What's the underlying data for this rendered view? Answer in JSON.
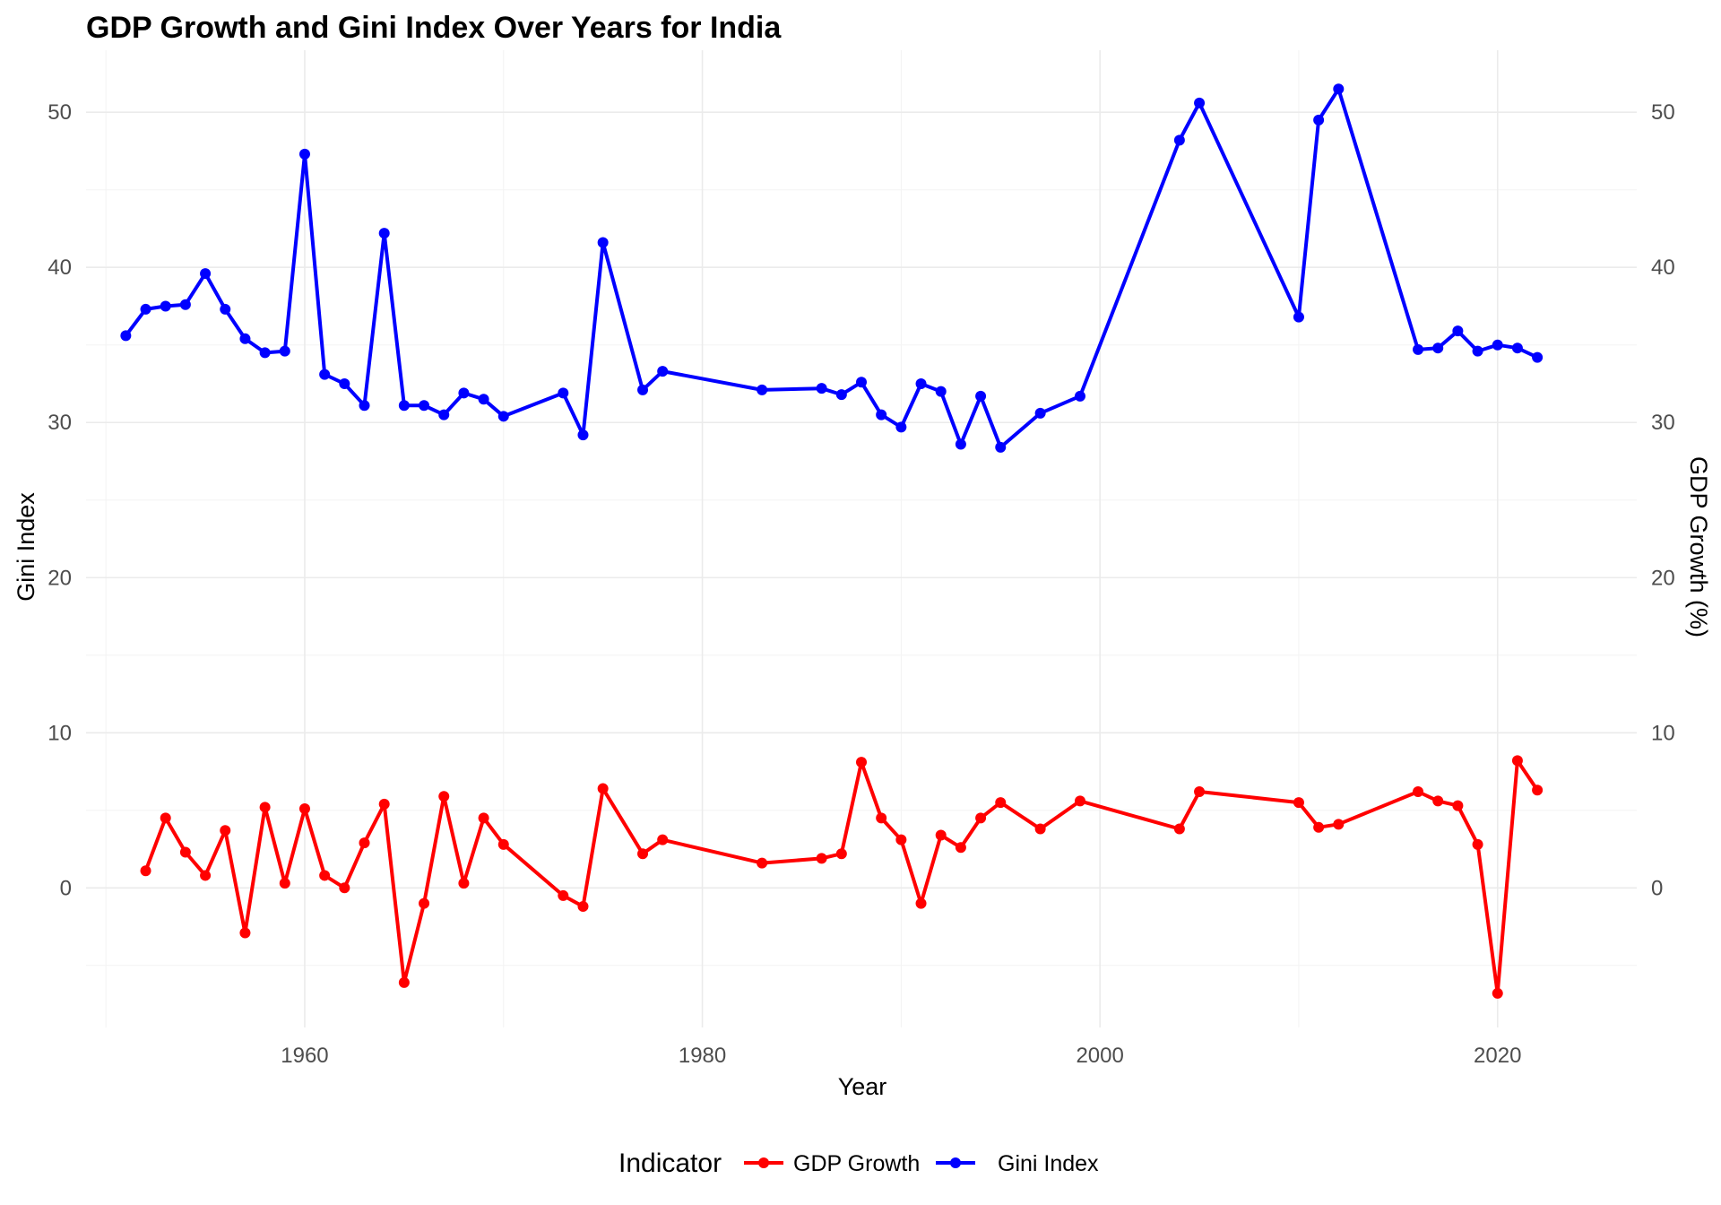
{
  "chart_data": {
    "type": "line",
    "title": "GDP Growth and Gini Index Over Years for  India",
    "xlabel": "Year",
    "ylabel": "Gini Index",
    "ylabel_right": "GDP Growth (%)",
    "xlim": [
      1949,
      2027
    ],
    "ylim": [
      -9,
      54
    ],
    "x_ticks": [
      1960,
      1980,
      2000,
      2020
    ],
    "y_ticks": [
      0,
      10,
      20,
      30,
      40,
      50
    ],
    "grid": true,
    "legend": {
      "title": "Indicator",
      "position": "bottom"
    },
    "series": [
      {
        "name": "GDP Growth",
        "color": "#ff0000",
        "x": [
          1952,
          1953,
          1954,
          1955,
          1956,
          1957,
          1958,
          1959,
          1960,
          1961,
          1962,
          1963,
          1964,
          1965,
          1966,
          1967,
          1968,
          1969,
          1970,
          1973,
          1974,
          1975,
          1977,
          1978,
          1983,
          1986,
          1987,
          1988,
          1989,
          1990,
          1991,
          1992,
          1993,
          1994,
          1995,
          1997,
          1999,
          2004,
          2005,
          2010,
          2011,
          2012,
          2016,
          2017,
          2018,
          2019,
          2020,
          2021,
          2022
        ],
        "values": [
          1.1,
          4.5,
          2.3,
          0.8,
          3.7,
          -2.9,
          5.2,
          0.3,
          5.1,
          0.8,
          0.0,
          2.9,
          5.4,
          -6.1,
          -1.0,
          5.9,
          0.3,
          4.5,
          2.8,
          -0.5,
          -1.2,
          6.4,
          2.2,
          3.1,
          1.6,
          1.9,
          2.2,
          8.1,
          4.5,
          3.1,
          -1.0,
          3.4,
          2.6,
          4.5,
          5.5,
          3.8,
          5.6,
          3.8,
          6.2,
          5.5,
          3.9,
          4.1,
          6.2,
          5.6,
          5.3,
          2.8,
          -6.8,
          8.2,
          6.3
        ]
      },
      {
        "name": "Gini Index",
        "color": "#0000ff",
        "x": [
          1951,
          1952,
          1953,
          1954,
          1955,
          1956,
          1957,
          1958,
          1959,
          1960,
          1961,
          1962,
          1963,
          1964,
          1965,
          1966,
          1967,
          1968,
          1969,
          1970,
          1973,
          1974,
          1975,
          1977,
          1978,
          1983,
          1986,
          1987,
          1988,
          1989,
          1990,
          1991,
          1992,
          1993,
          1994,
          1995,
          1997,
          1999,
          2004,
          2005,
          2010,
          2011,
          2012,
          2016,
          2017,
          2018,
          2019,
          2020,
          2021,
          2022
        ],
        "values": [
          35.6,
          37.3,
          37.5,
          37.6,
          39.6,
          37.3,
          35.4,
          34.5,
          34.6,
          47.3,
          33.1,
          32.5,
          31.1,
          42.2,
          31.1,
          31.1,
          30.5,
          31.9,
          31.5,
          30.4,
          31.9,
          29.2,
          41.6,
          32.1,
          33.3,
          32.1,
          32.2,
          31.8,
          32.6,
          30.5,
          29.7,
          32.5,
          32.0,
          28.6,
          31.7,
          28.4,
          30.6,
          31.7,
          48.2,
          50.6,
          36.8,
          49.5,
          51.5,
          34.7,
          34.8,
          35.9,
          34.6,
          35.0,
          34.8,
          34.2
        ]
      }
    ]
  }
}
